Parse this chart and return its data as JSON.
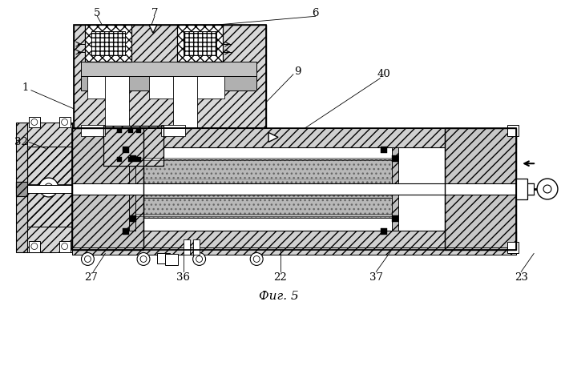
{
  "bg_color": "#ffffff",
  "fig_caption": "Фиг. 5",
  "labels": [
    "1",
    "5",
    "6",
    "7",
    "9",
    "22",
    "23",
    "27",
    "32",
    "36",
    "37",
    "40"
  ],
  "hatch_diagonal": "///",
  "hatch_cross": "xxx",
  "gray_light": "#d8d8d8",
  "gray_med": "#b8b8b8",
  "gray_dark": "#909090"
}
